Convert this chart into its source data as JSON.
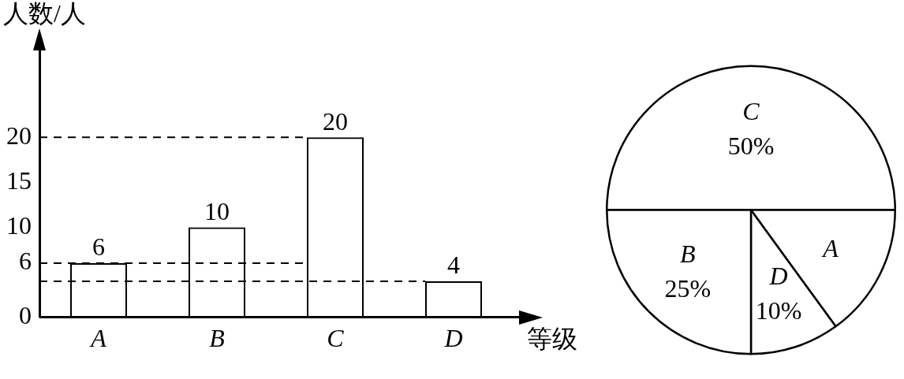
{
  "chart_data": [
    {
      "type": "bar",
      "xlabel": "等级",
      "ylabel": "人数/人",
      "categories": [
        "A",
        "B",
        "C",
        "D"
      ],
      "values": [
        6,
        10,
        20,
        4
      ],
      "color": "#000000",
      "ylim": [
        0,
        30
      ],
      "yticks": [
        0,
        6,
        10,
        15,
        20
      ],
      "grid": false,
      "legend": false,
      "data_labels": true,
      "ref_lines": [
        {
          "axis": "y",
          "value": 20,
          "line_style": "dashed"
        },
        {
          "axis": "y",
          "value": 6,
          "line_style": "dashed"
        },
        {
          "axis": "y",
          "value": 4,
          "line_style": "dashed"
        }
      ]
    },
    {
      "type": "pie",
      "categories": [
        "C",
        "A",
        "D",
        "B"
      ],
      "values": [
        50,
        15,
        10,
        25
      ],
      "colors": [
        "#ffffff",
        "#ffffff",
        "#ffffff",
        "#ffffff"
      ],
      "value_labels": [
        "50%",
        null,
        "10%",
        "25%"
      ],
      "legend": false
    }
  ]
}
